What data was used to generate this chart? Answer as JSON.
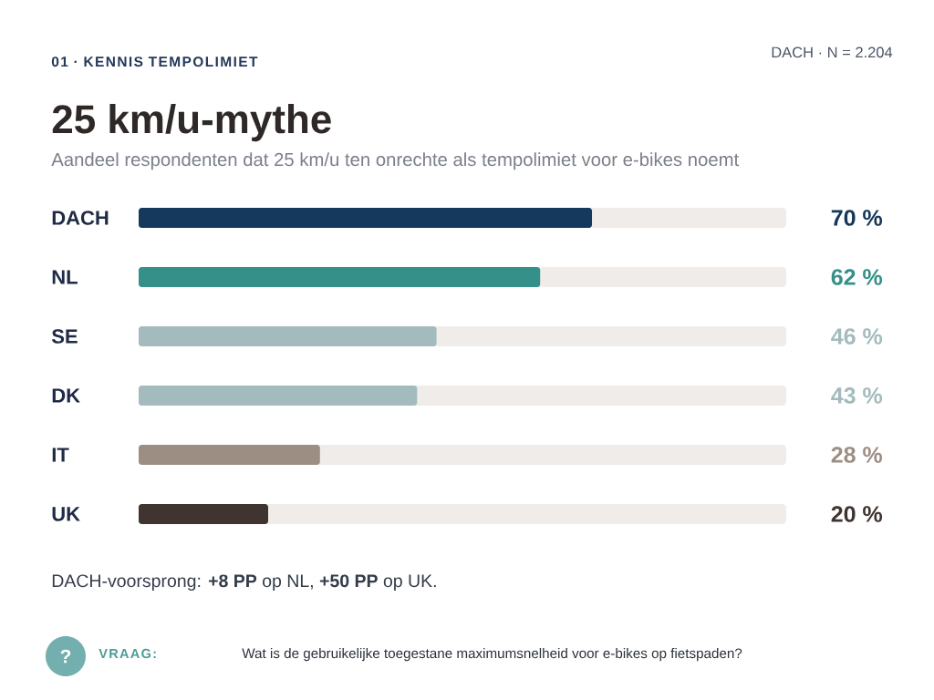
{
  "chart_data": {
    "type": "bar",
    "orientation": "horizontal",
    "title": "25 km/u-mythe",
    "subtitle": "Aandeel respondenten dat 25 km/u ten onrechte als tempolimiet voor e-bikes noemt",
    "categories": [
      "DACH",
      "NL",
      "SE",
      "DK",
      "IT",
      "UK"
    ],
    "values": [
      70,
      62,
      46,
      43,
      28,
      20
    ],
    "colors": [
      "#14395c",
      "#349088",
      "#a3bbbd",
      "#a3bbbd",
      "#9d8e83",
      "#3f3430"
    ],
    "value_labels": [
      "70 %",
      "62 %",
      "46 %",
      "43 %",
      "28 %",
      "20 %"
    ],
    "xlim": [
      0,
      100
    ],
    "annotations": [
      "01 · KENNIS TEMPOLIMIET",
      "DACH · N = 2.204",
      "DACH-voorsprong: **+8 PP** op NL, **+50 PP** op UK.",
      "?",
      "VRAAG:",
      "Wat is de gebruikelijke toegestane maximumsnelheid voor e-bikes op fietspaden?"
    ]
  }
}
